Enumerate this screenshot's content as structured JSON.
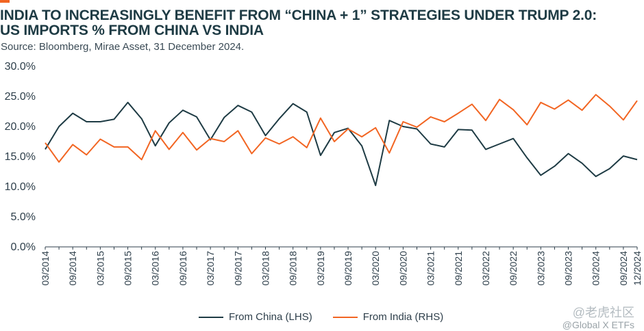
{
  "header": {
    "title_line1": "INDIA TO INCREASINGLY BENEFIT FROM “CHINA + 1” STRATEGIES UNDER TRUMP 2.0:",
    "title_line2": "US IMPORTS % FROM CHINA VS INDIA",
    "source": "Source: Bloomberg, Mirae Asset, 31 December 2024."
  },
  "watermark": {
    "line1": "@老虎社区",
    "line2": "@Global X ETFs"
  },
  "chart_data": {
    "type": "line",
    "title": "US IMPORTS % FROM CHINA VS INDIA",
    "xlabel": "",
    "ylabel": "",
    "ylim": [
      0,
      30
    ],
    "yticks": [
      "0.0%",
      "5.0%",
      "10.0%",
      "15.0%",
      "20.0%",
      "25.0%",
      "30.0%"
    ],
    "x": [
      "03/2014",
      "06/2014",
      "09/2014",
      "12/2014",
      "03/2015",
      "06/2015",
      "09/2015",
      "12/2015",
      "03/2016",
      "06/2016",
      "09/2016",
      "12/2016",
      "03/2017",
      "06/2017",
      "09/2017",
      "12/2017",
      "03/2018",
      "06/2018",
      "09/2018",
      "12/2018",
      "03/2019",
      "06/2019",
      "09/2019",
      "12/2019",
      "03/2020",
      "06/2020",
      "09/2020",
      "12/2020",
      "03/2021",
      "06/2021",
      "09/2021",
      "12/2021",
      "03/2022",
      "06/2022",
      "09/2022",
      "12/2022",
      "03/2023",
      "06/2023",
      "09/2023",
      "12/2023",
      "03/2024",
      "06/2024",
      "09/2024",
      "12/2024"
    ],
    "xtick_labels": [
      "03/2014",
      "09/2014",
      "03/2015",
      "09/2015",
      "03/2016",
      "09/2016",
      "03/2017",
      "09/2017",
      "03/2018",
      "09/2018",
      "03/2019",
      "09/2019",
      "03/2020",
      "09/2020",
      "03/2021",
      "09/2021",
      "03/2022",
      "09/2022",
      "03/2023",
      "09/2023",
      "03/2024",
      "09/2024",
      "12/2024"
    ],
    "grid": false,
    "legend_position": "bottom",
    "series": [
      {
        "name": "From China (LHS)",
        "color": "#1e3b44",
        "values": [
          16.2,
          20.0,
          22.2,
          20.8,
          20.8,
          21.2,
          24.0,
          21.3,
          16.8,
          20.6,
          22.7,
          21.6,
          17.8,
          21.5,
          23.5,
          22.4,
          18.5,
          21.3,
          23.8,
          22.4,
          15.2,
          19.0,
          19.7,
          16.8,
          10.2,
          21.0,
          20.0,
          19.6,
          17.1,
          16.6,
          19.5,
          19.4,
          16.2,
          17.1,
          18.0,
          14.8,
          11.9,
          13.4,
          15.5,
          13.9,
          11.7,
          13.0,
          15.1,
          14.5
        ]
      },
      {
        "name": "From India (RHS)",
        "color": "#f26522",
        "values": [
          17.3,
          14.1,
          17.0,
          15.3,
          17.9,
          16.6,
          16.6,
          14.5,
          19.3,
          16.2,
          19.0,
          16.1,
          18.0,
          17.5,
          19.3,
          15.5,
          18.1,
          17.1,
          18.3,
          16.5,
          21.4,
          17.5,
          19.6,
          18.3,
          19.8,
          15.6,
          20.8,
          19.9,
          21.6,
          20.8,
          22.2,
          23.7,
          21.0,
          24.5,
          22.8,
          20.3,
          24.0,
          22.9,
          24.4,
          22.7,
          25.3,
          23.4,
          21.1,
          24.3
        ]
      }
    ]
  }
}
